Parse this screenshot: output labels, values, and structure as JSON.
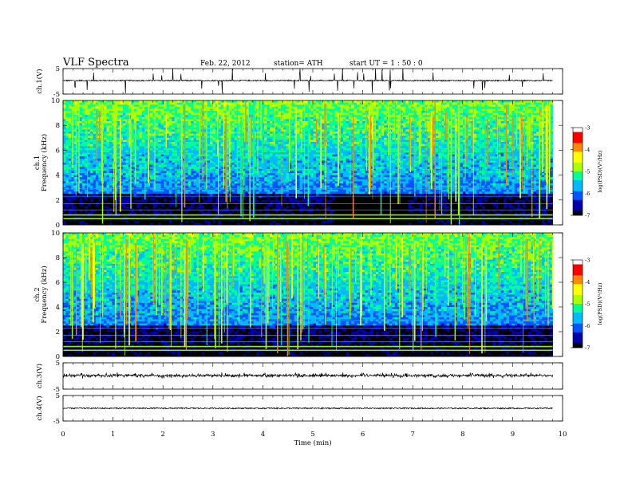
{
  "header": {
    "title": "VLF Spectra",
    "date": "Feb. 22, 2012",
    "station": "station= ATH",
    "start_ut": "start  UT =   1 : 50 : 0"
  },
  "chart_data": [
    {
      "type": "line",
      "panel": "ch1-waveform",
      "ylabel": "ch.1(V)",
      "ylim": [
        -5,
        5
      ],
      "y_ticks": [
        "5",
        "-5"
      ],
      "x_ticks": [
        0,
        1,
        2,
        3,
        4,
        5,
        6,
        7,
        8,
        9,
        10
      ],
      "trace_baseline": 0.3,
      "trace_noise": 0.5
    },
    {
      "type": "heatmap",
      "panel": "ch1-spectrogram",
      "ylabel": "ch.1",
      "ylabel2": "Frequency (kHz)",
      "ylim": [
        0,
        10
      ],
      "y_ticks": [
        "0",
        "2",
        "4",
        "6",
        "8",
        "10"
      ],
      "x_range_min": [
        0,
        9.8
      ],
      "colorbar": {
        "label": "log(PSD)(V²/Hz)",
        "range": [
          -7,
          -3
        ],
        "ticks": [
          "-3",
          "-4",
          "-5",
          "-6",
          "-7"
        ]
      }
    },
    {
      "type": "heatmap",
      "panel": "ch2-spectrogram",
      "ylabel": "ch.2",
      "ylabel2": "Frequency (kHz)",
      "ylim": [
        0,
        10
      ],
      "y_ticks": [
        "0",
        "2",
        "4",
        "6",
        "8",
        "10"
      ],
      "x_range_min": [
        0,
        9.8
      ],
      "colorbar": {
        "label": "log(PSD)(V²/Hz)",
        "range": [
          -7,
          -3
        ],
        "ticks": [
          "-3",
          "-4",
          "-5",
          "-6",
          "-7"
        ]
      }
    },
    {
      "type": "line",
      "panel": "ch3-waveform",
      "ylabel": "ch.3(V)",
      "ylim": [
        -5,
        5
      ],
      "y_ticks": [
        "5",
        "-5"
      ],
      "trace_baseline": 0.2,
      "trace_noise": 0.8
    },
    {
      "type": "line",
      "panel": "ch4-waveform",
      "ylabel": "ch.4(V)",
      "ylim": [
        -5,
        5
      ],
      "y_ticks": [
        "5",
        "-5"
      ],
      "trace_baseline": 0.0,
      "trace_noise": 0.5
    }
  ],
  "xaxis": {
    "label": "Time  (min)",
    "ticks": [
      "0",
      "1",
      "2",
      "3",
      "4",
      "5",
      "6",
      "7",
      "8",
      "9",
      "10"
    ]
  },
  "colors": {
    "trace": "#000000",
    "colormap": [
      "#000000",
      "#0000aa",
      "#0055ff",
      "#00bbff",
      "#00ff99",
      "#aaff00",
      "#ffff00",
      "#ff8800",
      "#ff0000",
      "#ffffff"
    ]
  }
}
